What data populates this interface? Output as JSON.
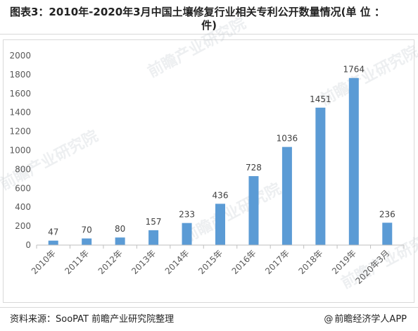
{
  "title": {
    "line1": "图表3：2010年-2020年3月中国土壤修复行业相关专利公开数量情况(单 位 ：",
    "line2": "件)"
  },
  "watermark_text": "前瞻产业研究院",
  "footer": {
    "source": "资料来源：SooPAT 前瞻产业研究院整理",
    "brand": "前瞻经济学人APP",
    "brand_icon": "@"
  },
  "colors": {
    "bar": "#5b9bd5",
    "axis": "#bfbfbf",
    "grid": "#e6e6e6",
    "text": "#595959"
  },
  "chart_data": {
    "type": "bar",
    "categories": [
      "2010年",
      "2011年",
      "2012年",
      "2013年",
      "2014年",
      "2015年",
      "2016年",
      "2017年",
      "2018年",
      "2019年",
      "2020年3月"
    ],
    "values": [
      47,
      70,
      80,
      157,
      233,
      436,
      728,
      1036,
      1451,
      1764,
      236
    ],
    "ylim": [
      0,
      2000
    ],
    "yticks": [
      0,
      200,
      400,
      600,
      800,
      1000,
      1200,
      1400,
      1600,
      1800,
      2000
    ],
    "grid": false,
    "legend": "none",
    "data_labels": true
  }
}
